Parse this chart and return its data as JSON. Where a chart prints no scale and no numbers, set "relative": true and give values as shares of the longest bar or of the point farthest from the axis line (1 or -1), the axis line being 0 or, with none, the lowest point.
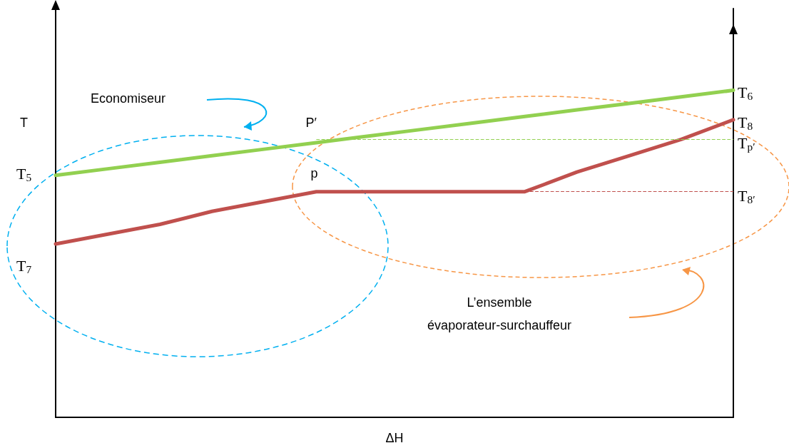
{
  "chart_data": {
    "type": "line",
    "relative": true,
    "xlabel": "ΔH",
    "ylabel": "T",
    "categories": [
      null,
      null,
      null,
      null,
      null,
      null,
      null,
      null,
      null,
      null,
      null,
      null,
      null,
      null
    ],
    "series": [
      {
        "color": "#92d050",
        "values": [
          0.74,
          0.76,
          0.78,
          0.8,
          0.82,
          0.84,
          0.86,
          0.88,
          0.9,
          0.92,
          0.94,
          0.96,
          0.98,
          1
        ]
      },
      {
        "color": "#c0504d",
        "values": [
          0.53,
          0.56,
          0.59,
          0.63,
          0.66,
          0.69,
          0.69,
          0.69,
          0.69,
          0.69,
          0.75,
          0.8,
          0.85,
          0.91
        ]
      }
    ],
    "ref_lines": [
      {
        "axis": "y",
        "value": 0.85,
        "label": "T$_{p′}$",
        "color": "#92d050",
        "line_style": "dashed"
      },
      {
        "axis": "y",
        "value": 0.69,
        "label": "T$_{8′}$",
        "color": "#c0504d",
        "line_style": "dashed"
      }
    ],
    "annotations": [
      "T$_{5}$",
      "T$_{6}$",
      "T$_{7}$",
      "T$_{8}$",
      "P′",
      "p",
      "Economiseur",
      "L’ensemble\névaporateur-surchauffeur"
    ],
    "grid": false,
    "line_style": "solid"
  }
}
